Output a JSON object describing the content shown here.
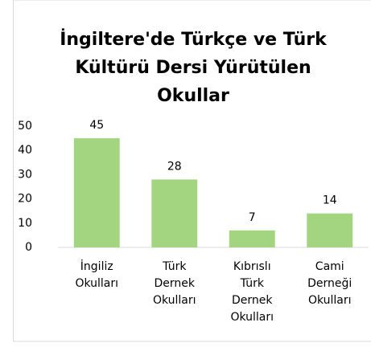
{
  "chart_data": {
    "type": "bar",
    "title": [
      "İngiltere'de Türkçe ve Türk",
      "Kültürü Dersi Yürütülen",
      "Okullar"
    ],
    "categories": [
      [
        "İngiliz",
        "Okulları"
      ],
      [
        "Türk",
        "Dernek",
        "Okulları"
      ],
      [
        "Kıbrıslı",
        "Türk",
        "Dernek",
        "Okulları"
      ],
      [
        "Cami",
        "Derneği",
        "Okulları"
      ]
    ],
    "values": [
      45,
      28,
      7,
      14
    ],
    "color": "#a3d47f",
    "ylim": [
      0,
      50
    ],
    "yticks": [
      0,
      10,
      20,
      30,
      40,
      50
    ],
    "grid": false
  }
}
